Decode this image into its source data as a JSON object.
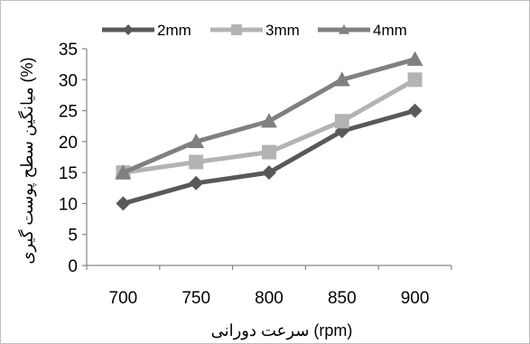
{
  "chart_data": {
    "type": "line",
    "categories": [
      "700",
      "750",
      "800",
      "850",
      "900"
    ],
    "series": [
      {
        "name": "2mm",
        "values": [
          10,
          13.3,
          15,
          21.7,
          25
        ],
        "color": "#595959",
        "marker": "diamond"
      },
      {
        "name": "3mm",
        "values": [
          15,
          16.7,
          18.3,
          23.3,
          30
        ],
        "color": "#b3b3b3",
        "marker": "square"
      },
      {
        "name": "4mm",
        "values": [
          15,
          20,
          23.3,
          30,
          33.3
        ],
        "color": "#808080",
        "marker": "triangle"
      }
    ],
    "xlabel": "سرعت دورانی  (rpm)",
    "ylabel": "میانگین سطح پوست گیری  (%)",
    "ylim": [
      0,
      35
    ],
    "yticks": [
      0,
      5,
      10,
      15,
      20,
      25,
      30,
      35
    ],
    "grid": false,
    "legend_position": "top"
  }
}
